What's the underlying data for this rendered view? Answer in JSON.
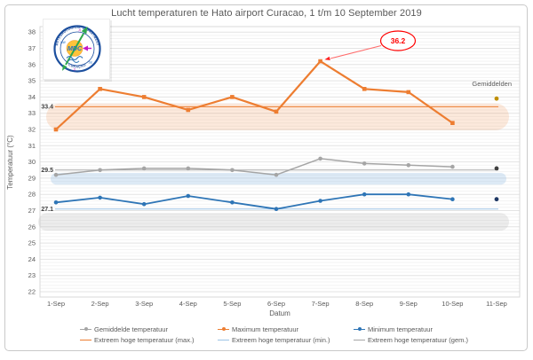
{
  "chart_data": {
    "type": "line",
    "title": "Lucht temperaturen te Hato airport Curacao, 1 t/m 10 September 2019",
    "xlabel": "Datum",
    "ylabel": "Temperatuur (°C)",
    "ylim": [
      22,
      38
    ],
    "ytick_step": 1,
    "grid": "minor-and-major-horizontal",
    "legend_position": "bottom",
    "categories": [
      "1-Sep",
      "2-Sep",
      "3-Sep",
      "4-Sep",
      "5-Sep",
      "6-Sep",
      "7-Sep",
      "8-Sep",
      "9-Sep",
      "10-Sep",
      "11-Sep"
    ],
    "series": [
      {
        "name": "Gemiddelde temperatuur",
        "color": "#A5A5A5",
        "marker": "circle",
        "line_width": 1.5,
        "values": [
          29.2,
          29.5,
          29.6,
          29.6,
          29.5,
          29.2,
          30.2,
          29.9,
          29.8,
          29.7
        ]
      },
      {
        "name": "Maximum temperatuur",
        "color": "#ED7D31",
        "marker": "square",
        "line_width": 2.2,
        "values": [
          32.0,
          34.5,
          34.0,
          33.2,
          34.0,
          33.1,
          36.2,
          34.5,
          34.3,
          32.4
        ]
      },
      {
        "name": "Minimum temperatuur",
        "color": "#2E75B6",
        "marker": "circle",
        "line_width": 1.8,
        "values": [
          27.5,
          27.8,
          27.4,
          27.9,
          27.5,
          27.1,
          27.6,
          28.0,
          28.0,
          27.7
        ]
      }
    ],
    "reference_lines": [
      {
        "label": "33.4",
        "value": 33.4,
        "color": "#ED7D31"
      },
      {
        "label": "29.5",
        "value": 29.5,
        "color": "#ABABAB"
      },
      {
        "label": "27.1",
        "value": 27.1,
        "color": "#9DC3E6"
      }
    ],
    "bands": [
      {
        "top": 33.6,
        "bottom": 31.95,
        "color": "#ED7D31",
        "opacity": 0.17
      },
      {
        "top": 29.32,
        "bottom": 28.6,
        "color": "#9DC3E6",
        "opacity": 0.35
      },
      {
        "top": 26.85,
        "bottom": 25.75,
        "color": "#BFBFBF",
        "opacity": 0.3
      }
    ],
    "averages": {
      "label": "Gemiddelden",
      "category": "11-Sep",
      "points": [
        {
          "value": 33.9,
          "color": "#BF8F00"
        },
        {
          "value": 29.6,
          "color": "#404040"
        },
        {
          "value": 27.7,
          "color": "#1F3864"
        }
      ]
    },
    "annotation": {
      "text": "36.2",
      "category": "7-Sep",
      "value": 36.2,
      "color": "#FF0000"
    }
  },
  "legend": {
    "items": [
      {
        "label": "Gemiddelde temperatuur",
        "color": "#A5A5A5",
        "style": "marker"
      },
      {
        "label": "Maximum temperatuur",
        "color": "#ED7D31",
        "style": "marker"
      },
      {
        "label": "Minimum temperatuur",
        "color": "#2E75B6",
        "style": "marker"
      },
      {
        "label": "Extreem hoge temperatuur (max.)",
        "color": "#ED7D31",
        "style": "thin"
      },
      {
        "label": "Extreem hoge temperatuur (min.)",
        "color": "#9DC3E6",
        "style": "thin"
      },
      {
        "label": "Extreem hoge temperatuur (gem.)",
        "color": "#A6A6A6",
        "style": "thin"
      }
    ]
  },
  "logo": {
    "center": "MDC",
    "ring_top": "METEOROLOGICAL DEPARTMENT",
    "ring_bottom": "CURAÇAO",
    "compass": [
      "NW",
      "N",
      "SE",
      "S"
    ],
    "ring_color": "#1C4F9E",
    "sun_color": "#FFC33B",
    "arrow_color": "#2EA84D",
    "vane_color": "#C617C6",
    "wave_color": "#2E75B6"
  }
}
